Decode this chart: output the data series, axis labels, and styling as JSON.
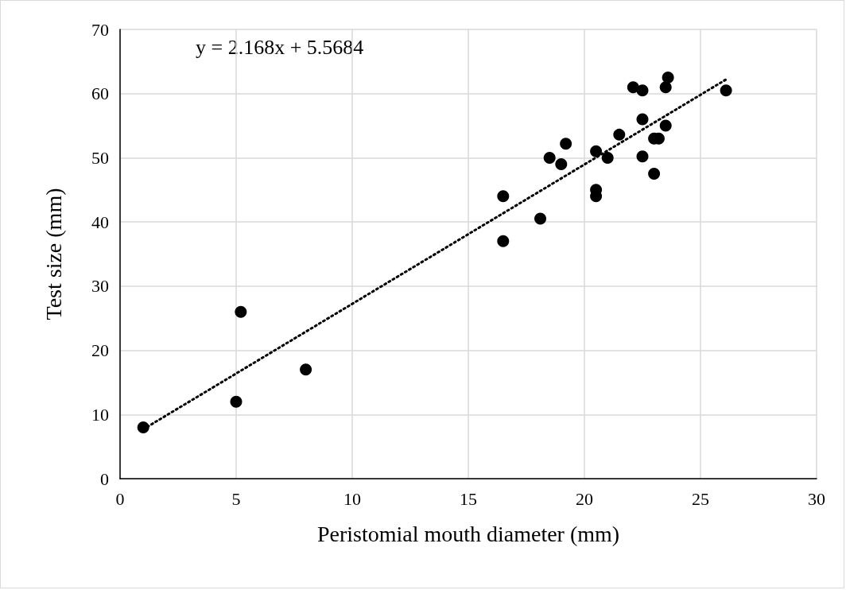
{
  "chart_data": {
    "type": "scatter",
    "xlabel": "Peristomial mouth diameter (mm)",
    "ylabel": "Test size (mm)",
    "annotations": [
      "y = 2.168x + 5.5684"
    ],
    "xlim": [
      0,
      30
    ],
    "xticks": [
      0,
      5,
      10,
      15,
      20,
      25,
      30
    ],
    "ylim": [
      0,
      70
    ],
    "yticks": [
      0,
      10,
      20,
      30,
      40,
      50,
      60,
      70
    ],
    "grid": true,
    "marker": "circle",
    "series": [
      {
        "color": "#000000",
        "x": [
          1,
          5,
          5.2,
          8,
          16.5,
          16.5,
          18.1,
          18.5,
          19,
          19.2,
          20.5,
          20.5,
          20.5,
          21,
          21.5,
          22.1,
          22.5,
          22.5,
          22.5,
          23,
          23,
          23.2,
          23.5,
          23.5,
          23.6,
          26.1
        ],
        "values": [
          8,
          12,
          26,
          17,
          37,
          44,
          40.5,
          50,
          49,
          52.2,
          45,
          44,
          51,
          50,
          53.6,
          61,
          60.5,
          56,
          50.2,
          47.5,
          53,
          53,
          55,
          61,
          62.5,
          60.5
        ]
      },
      {
        "type": "line",
        "color": "#000000",
        "line_style": "dotted",
        "marker": "none",
        "x": [
          1,
          26.1
        ],
        "values": [
          7.7,
          62.2
        ]
      }
    ]
  }
}
